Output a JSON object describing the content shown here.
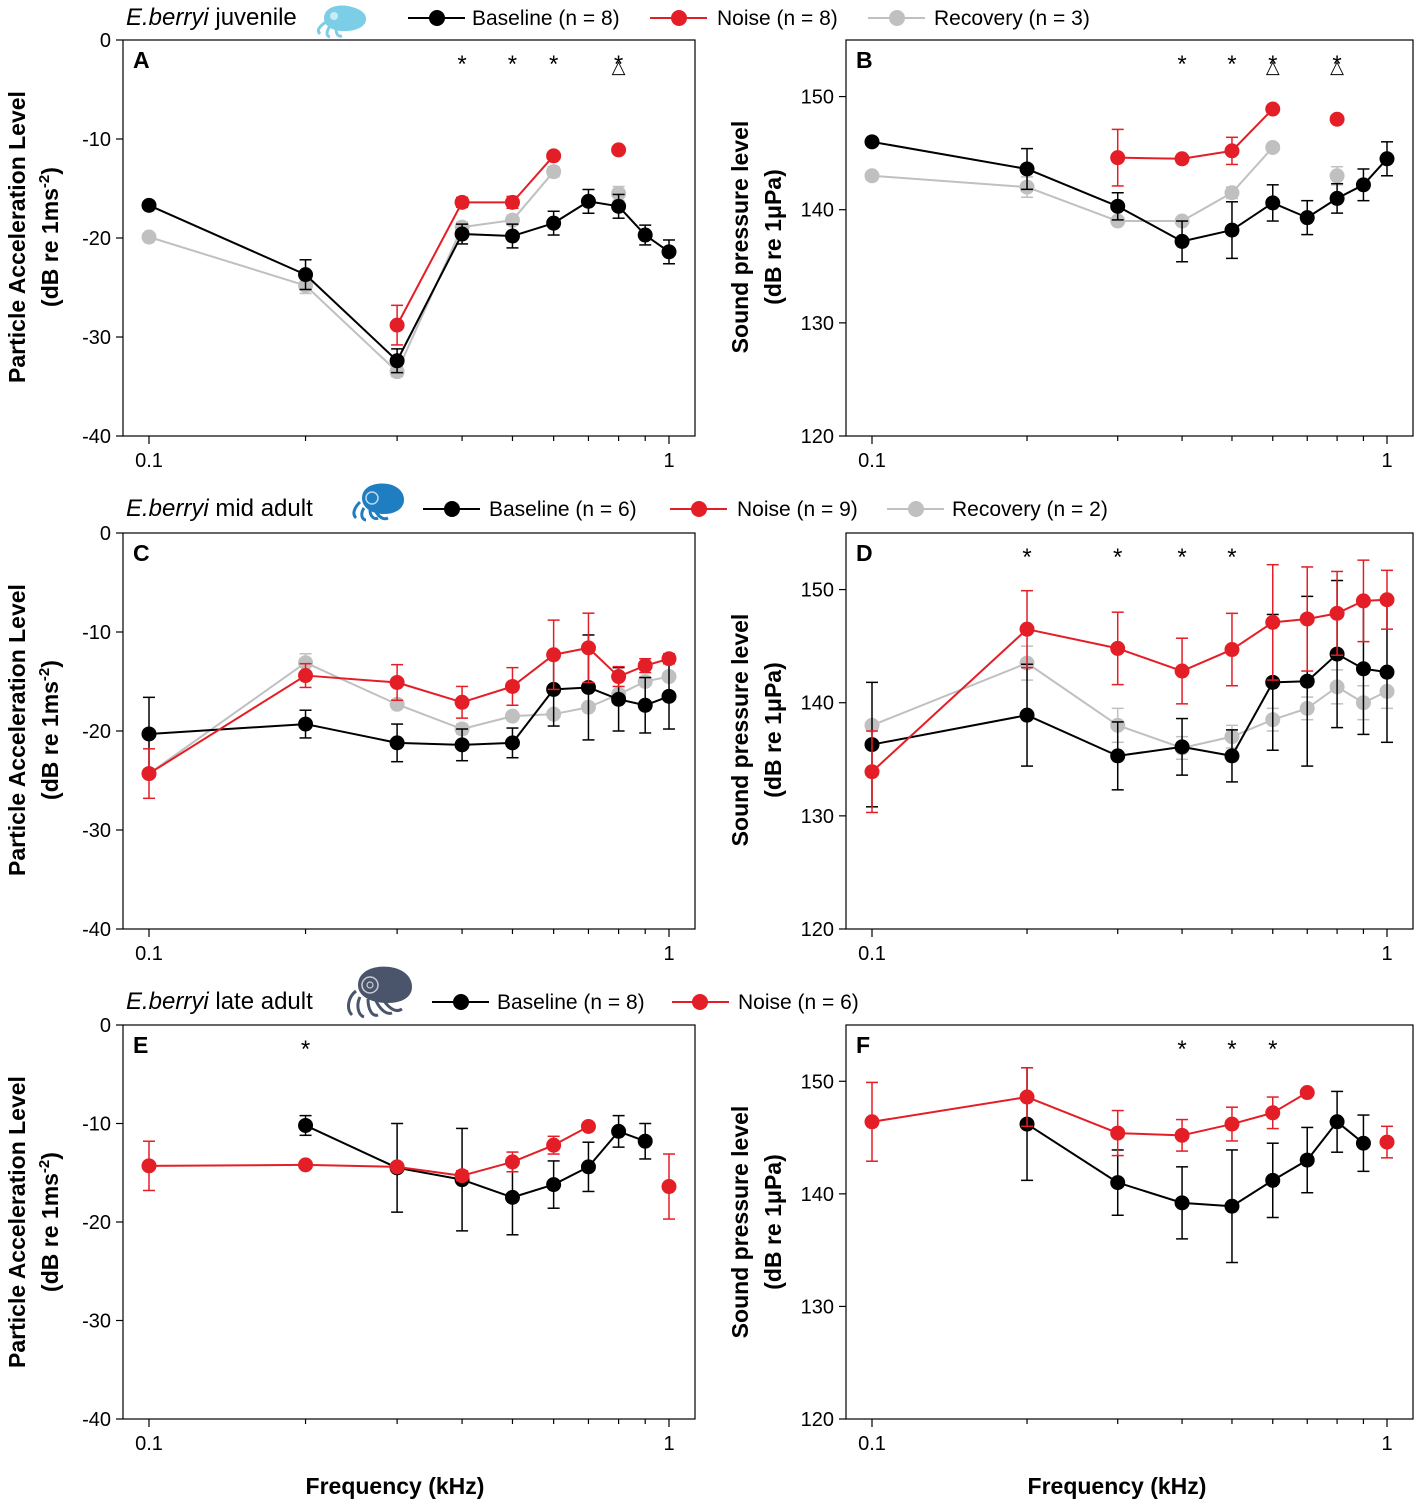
{
  "colors": {
    "baseline": "#000000",
    "noise": "#e41e26",
    "recovery": "#c0c0c0"
  },
  "x_label": "Frequency (kHz)",
  "x_ticks": [
    {
      "v": 0.1,
      "label": "0.1"
    },
    {
      "v": 1,
      "label": "1"
    }
  ],
  "y_label_pal": [
    "Particle Acceleration Level",
    "(dB re 1ms",
    "-2",
    ")"
  ],
  "y_label_spl": [
    "Sound pressure level",
    "(dB re 1μPa)"
  ],
  "rows": [
    {
      "species": "E.berryi",
      "stage": "juvenile",
      "icon": "juvenile-cuttlefish-icon",
      "legend": [
        {
          "key": "baseline",
          "label": "Baseline (n = 8)"
        },
        {
          "key": "noise",
          "label": "Noise (n = 8)"
        },
        {
          "key": "recovery",
          "label": "Recovery (n = 3)"
        }
      ]
    },
    {
      "species": "E.berryi",
      "stage": "mid adult",
      "icon": "mid-adult-cuttlefish-icon",
      "legend": [
        {
          "key": "baseline",
          "label": "Baseline (n = 6)"
        },
        {
          "key": "noise",
          "label": "Noise (n = 9)"
        },
        {
          "key": "recovery",
          "label": "Recovery (n = 2)"
        }
      ]
    },
    {
      "species": "E.berryi",
      "stage": "late adult",
      "icon": "late-adult-cuttlefish-icon",
      "legend": [
        {
          "key": "baseline",
          "label": "Baseline (n = 8)"
        },
        {
          "key": "noise",
          "label": "Noise (n = 6)"
        }
      ]
    }
  ],
  "chart_data": [
    {
      "panel": "A",
      "type": "line",
      "xscale": "log",
      "ylim": [
        -40,
        0
      ],
      "yticks": [
        0,
        -10,
        -20,
        -30,
        -40
      ],
      "xlabel": "",
      "ylabel": "Particle Acceleration Level (dB re 1ms-2)",
      "series": [
        {
          "key": "baseline",
          "x": [
            0.1,
            0.2,
            0.3,
            0.4,
            0.5,
            0.6,
            0.7,
            0.8,
            0.9,
            1.0
          ],
          "y": [
            -16.7,
            -23.7,
            -32.4,
            -19.6,
            -19.8,
            -18.5,
            -16.3,
            -16.8,
            -19.7,
            -21.4
          ],
          "err": [
            0,
            1.5,
            1.2,
            1.0,
            1.2,
            1.2,
            1.2,
            1.2,
            1.0,
            1.2
          ]
        },
        {
          "key": "noise",
          "x": [
            0.3,
            0.4,
            0.5,
            0.6,
            0.8
          ],
          "y": [
            -28.8,
            -16.4,
            -16.4,
            -11.7,
            -11.1
          ],
          "err": [
            2.0,
            0.5,
            0.6,
            0.3,
            0
          ],
          "connected": [
            true,
            true,
            true,
            true,
            false
          ]
        },
        {
          "key": "recovery",
          "x": [
            0.1,
            0.2,
            0.3,
            0.4,
            0.5,
            0.6,
            0.8
          ],
          "y": [
            -19.9,
            -24.8,
            -33.5,
            -18.9,
            -18.2,
            -13.3,
            -15.5
          ],
          "err": [
            0,
            0.8,
            0.5,
            0.5,
            0.5,
            0.5,
            0.7
          ],
          "connected": [
            true,
            true,
            true,
            true,
            true,
            true,
            false
          ]
        }
      ],
      "stars": [
        0.4,
        0.5,
        0.6,
        0.8
      ],
      "triangles": [
        0.8
      ]
    },
    {
      "panel": "B",
      "type": "line",
      "xscale": "log",
      "ylim": [
        120,
        155
      ],
      "yticks": [
        120,
        130,
        140,
        150
      ],
      "xlabel": "",
      "ylabel": "Sound pressure level (dB re 1μPa)",
      "series": [
        {
          "key": "baseline",
          "x": [
            0.1,
            0.2,
            0.3,
            0.4,
            0.5,
            0.6,
            0.7,
            0.8,
            0.9,
            1.0
          ],
          "y": [
            146.0,
            143.6,
            140.3,
            137.2,
            138.2,
            140.6,
            139.3,
            141.0,
            142.2,
            144.5
          ],
          "err": [
            0,
            1.8,
            1.2,
            1.8,
            2.5,
            1.6,
            1.5,
            1.3,
            1.4,
            1.5
          ]
        },
        {
          "key": "noise",
          "x": [
            0.3,
            0.4,
            0.5,
            0.6,
            0.8
          ],
          "y": [
            144.6,
            144.5,
            145.2,
            148.9,
            148.0
          ],
          "err": [
            2.5,
            0,
            1.2,
            0,
            0
          ],
          "connected": [
            true,
            true,
            true,
            true,
            false
          ]
        },
        {
          "key": "recovery",
          "x": [
            0.1,
            0.2,
            0.3,
            0.4,
            0.5,
            0.6,
            0.8
          ],
          "y": [
            143.0,
            142.0,
            139.0,
            139.0,
            141.5,
            145.5,
            143.0
          ],
          "err": [
            0,
            0.9,
            0,
            0,
            0.5,
            0,
            0.8
          ],
          "connected": [
            true,
            true,
            true,
            true,
            true,
            true,
            false
          ]
        }
      ],
      "stars": [
        0.4,
        0.5,
        0.6,
        0.8
      ],
      "triangles": [
        0.6,
        0.8
      ]
    },
    {
      "panel": "C",
      "type": "line",
      "xscale": "log",
      "ylim": [
        -40,
        0
      ],
      "yticks": [
        0,
        -10,
        -20,
        -30,
        -40
      ],
      "xlabel": "",
      "ylabel": "Particle Acceleration Level (dB re 1ms-2)",
      "series": [
        {
          "key": "baseline",
          "x": [
            0.1,
            0.2,
            0.3,
            0.4,
            0.5,
            0.6,
            0.7,
            0.8,
            0.9,
            1.0
          ],
          "y": [
            -20.3,
            -19.3,
            -21.2,
            -21.4,
            -21.2,
            -15.8,
            -15.6,
            -16.8,
            -17.4,
            -16.5
          ],
          "err": [
            3.7,
            1.4,
            1.9,
            1.6,
            1.5,
            3.7,
            5.3,
            3.2,
            2.8,
            3.3
          ]
        },
        {
          "key": "noise",
          "x": [
            0.1,
            0.2,
            0.3,
            0.4,
            0.5,
            0.6,
            0.7,
            0.8,
            0.9,
            1.0
          ],
          "y": [
            -24.3,
            -14.4,
            -15.1,
            -17.1,
            -15.5,
            -12.3,
            -11.6,
            -14.5,
            -13.4,
            -12.7
          ],
          "err": [
            2.5,
            1.2,
            1.8,
            1.6,
            1.9,
            3.5,
            3.5,
            1.0,
            0.7,
            0.5
          ]
        },
        {
          "key": "recovery",
          "x": [
            0.1,
            0.2,
            0.3,
            0.4,
            0.5,
            0.6,
            0.7,
            0.8,
            0.9,
            1.0
          ],
          "y": [
            -24.3,
            -13.1,
            -17.3,
            -19.8,
            -18.5,
            -18.3,
            -17.6,
            -16.3,
            -15.0,
            -14.5
          ],
          "err": [
            0,
            0.9,
            0,
            0.5,
            0,
            0,
            0,
            0.5,
            0,
            0
          ]
        }
      ],
      "stars": [],
      "triangles": []
    },
    {
      "panel": "D",
      "type": "line",
      "xscale": "log",
      "ylim": [
        120,
        155
      ],
      "yticks": [
        120,
        130,
        140,
        150
      ],
      "xlabel": "",
      "ylabel": "Sound pressure level (dB re 1μPa)",
      "series": [
        {
          "key": "baseline",
          "x": [
            0.1,
            0.2,
            0.3,
            0.4,
            0.5,
            0.6,
            0.7,
            0.8,
            0.9,
            1.0
          ],
          "y": [
            136.3,
            138.9,
            135.3,
            136.1,
            135.3,
            141.8,
            141.9,
            144.3,
            143.0,
            142.7
          ],
          "err": [
            5.5,
            4.5,
            3.0,
            2.5,
            2.3,
            6.0,
            7.5,
            6.5,
            5.8,
            6.2
          ]
        },
        {
          "key": "noise",
          "x": [
            0.1,
            0.2,
            0.3,
            0.4,
            0.5,
            0.6,
            0.7,
            0.8,
            0.9,
            1.0
          ],
          "y": [
            133.9,
            146.5,
            144.8,
            142.8,
            144.7,
            147.1,
            147.4,
            147.9,
            149.0,
            149.1
          ],
          "err": [
            3.6,
            3.4,
            3.2,
            2.9,
            3.2,
            5.1,
            4.6,
            3.7,
            3.6,
            2.6
          ]
        },
        {
          "key": "recovery",
          "x": [
            0.1,
            0.2,
            0.3,
            0.4,
            0.5,
            0.6,
            0.7,
            0.8,
            0.9,
            1.0
          ],
          "y": [
            138.0,
            143.5,
            138.0,
            136.0,
            137.0,
            138.5,
            139.5,
            141.4,
            140.0,
            141.0
          ],
          "err": [
            0,
            1.5,
            1.5,
            1.0,
            1.0,
            1.0,
            1.0,
            1.5,
            1.5,
            1.5
          ]
        }
      ],
      "stars": [
        0.2,
        0.3,
        0.4,
        0.5
      ],
      "triangles": []
    },
    {
      "panel": "E",
      "type": "line",
      "xscale": "log",
      "ylim": [
        -40,
        0
      ],
      "yticks": [
        0,
        -10,
        -20,
        -30,
        -40
      ],
      "xlabel": "Frequency (kHz)",
      "ylabel": "Particle Acceleration Level (dB re 1ms-2)",
      "series": [
        {
          "key": "baseline",
          "x": [
            0.2,
            0.3,
            0.4,
            0.5,
            0.6,
            0.7,
            0.8,
            0.9
          ],
          "y": [
            -10.2,
            -14.5,
            -15.7,
            -17.5,
            -16.2,
            -14.4,
            -10.8,
            -11.8
          ],
          "err": [
            1.0,
            4.5,
            5.2,
            3.8,
            2.4,
            2.5,
            1.6,
            1.8
          ]
        },
        {
          "key": "noise",
          "x": [
            0.1,
            0.2,
            0.3,
            0.4,
            0.5,
            0.6,
            0.7,
            1.0
          ],
          "y": [
            -14.3,
            -14.2,
            -14.4,
            -15.3,
            -13.9,
            -12.2,
            -10.3,
            -16.4
          ],
          "err": [
            2.5,
            0,
            0,
            0.5,
            1.0,
            0.9,
            0,
            3.3
          ],
          "connected": [
            true,
            true,
            true,
            true,
            true,
            true,
            true,
            false
          ]
        }
      ],
      "stars": [
        0.2
      ],
      "triangles": []
    },
    {
      "panel": "F",
      "type": "line",
      "xscale": "log",
      "ylim": [
        120,
        155
      ],
      "yticks": [
        120,
        130,
        140,
        150
      ],
      "xlabel": "Frequency (kHz)",
      "ylabel": "Sound pressure level (dB re 1μPa)",
      "series": [
        {
          "key": "baseline",
          "x": [
            0.2,
            0.3,
            0.4,
            0.5,
            0.6,
            0.7,
            0.8,
            0.9
          ],
          "y": [
            146.2,
            141.0,
            139.2,
            138.9,
            141.2,
            143.0,
            146.4,
            144.5
          ],
          "err": [
            5.0,
            2.9,
            3.2,
            5.0,
            3.3,
            2.9,
            2.7,
            2.5
          ]
        },
        {
          "key": "noise",
          "x": [
            0.1,
            0.2,
            0.3,
            0.4,
            0.5,
            0.6,
            0.7,
            1.0
          ],
          "y": [
            146.4,
            148.6,
            145.4,
            145.2,
            146.2,
            147.2,
            149.0,
            144.6
          ],
          "err": [
            3.5,
            2.6,
            2.0,
            1.4,
            1.5,
            1.4,
            0,
            1.4
          ],
          "connected": [
            true,
            true,
            true,
            true,
            true,
            true,
            true,
            false
          ]
        }
      ],
      "stars": [
        0.4,
        0.5,
        0.6
      ],
      "triangles": []
    }
  ]
}
